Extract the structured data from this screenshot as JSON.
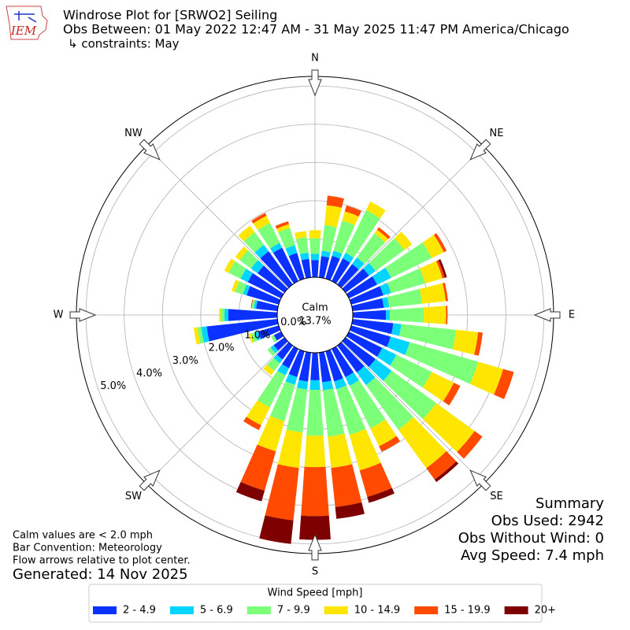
{
  "header": {
    "logo_text": "IEM",
    "title": "Windrose Plot for [SRWO2] Seiling",
    "subtitle": "Obs Between: 01 May 2022 12:47 AM - 31 May 2025 11:47 PM America/Chicago",
    "constraints": "↳ constraints: May"
  },
  "chart_data": {
    "type": "windrose",
    "categories": [
      "N",
      "",
      "",
      "",
      "",
      "",
      "",
      "",
      "",
      "",
      "",
      "",
      "",
      "",
      "",
      "",
      "",
      "",
      "",
      "",
      "",
      "",
      "",
      "",
      "",
      "",
      "",
      "",
      "",
      "",
      "",
      "",
      "",
      "",
      "",
      ""
    ],
    "directions": [
      "N",
      "NE",
      "E",
      "SE",
      "S",
      "SW",
      "W",
      "NW"
    ],
    "calm": {
      "name": "Calm",
      "label": "13.7%"
    },
    "rlim": [
      0,
      5.25
    ],
    "rticks": [
      {
        "value": 0,
        "label": "0.0%"
      },
      {
        "value": 1,
        "label": "1.0%"
      },
      {
        "value": 2,
        "label": "2.0%"
      },
      {
        "value": 3,
        "label": "3.0%"
      },
      {
        "value": 4,
        "label": "4.0%"
      },
      {
        "value": 5,
        "label": "5.0%"
      }
    ],
    "grid": true,
    "legend_title": "Wind Speed [mph]",
    "series": [
      {
        "name": "2 - 4.9",
        "color": "#0a31ff",
        "values": [
          0.45,
          0.56,
          0.62,
          0.66,
          0.66,
          0.76,
          0.82,
          0.87,
          0.82,
          0.87,
          1.07,
          1.07,
          0.97,
          0.97,
          0.87,
          0.82,
          0.82,
          0.78,
          0.72,
          0.76,
          0.7,
          0.56,
          0.45,
          0.35,
          0.21,
          0.56,
          1.86,
          1.28,
          0.56,
          0.87,
          0.97,
          0.87,
          1.07,
          0.97,
          0.7,
          0.49
        ]
      },
      {
        "name": "5 - 6.9",
        "color": "#00d4ff",
        "values": [
          0.16,
          0.14,
          0.14,
          0.16,
          0.21,
          0.21,
          0.41,
          0.21,
          0.14,
          0.1,
          0.21,
          0.52,
          0.41,
          0.52,
          0.41,
          0.25,
          0.21,
          0.21,
          0.25,
          0.21,
          0.21,
          0.21,
          0.12,
          0.1,
          0,
          0.1,
          0.14,
          0.1,
          0.06,
          0.1,
          0.21,
          0.21,
          0.21,
          0.14,
          0.21,
          0.16
        ]
      },
      {
        "name": "7 - 9.9",
        "color": "#7cff79",
        "values": [
          0.41,
          0.68,
          0.82,
          1.24,
          0.78,
          0.93,
          1.18,
          0.93,
          0.87,
          0.89,
          1.44,
          1.86,
          1.03,
          1.44,
          1.44,
          1.24,
          1.24,
          1.22,
          1.2,
          1.13,
          0.99,
          0.93,
          0.25,
          0.1,
          0.08,
          0.1,
          0.1,
          0.1,
          0.06,
          0.21,
          0.35,
          0.37,
          0.41,
          0.58,
          0.47,
          0.41
        ]
      },
      {
        "name": "10 - 14.9",
        "color": "#ffe600",
        "values": [
          0.21,
          0.52,
          0.25,
          0.25,
          0.12,
          0.25,
          0.35,
          0.47,
          0.62,
          0.58,
          0.58,
          0.68,
          0.64,
          1.24,
          1.24,
          0.52,
          0.97,
          0.82,
          0.82,
          0.93,
          0.82,
          0.52,
          0.14,
          0,
          0,
          0.06,
          0.1,
          0.04,
          0,
          0.1,
          0.12,
          0.14,
          0.21,
          0.21,
          0.1,
          0.16
        ]
      },
      {
        "name": "15 - 19.9",
        "color": "#ff4a00",
        "values": [
          0,
          0.25,
          0.16,
          0,
          0.08,
          0,
          0.08,
          0.06,
          0.06,
          0.04,
          0.12,
          0.29,
          0.19,
          0.25,
          0.37,
          0.16,
          0.72,
          1.03,
          1.28,
          1.38,
          1.07,
          0.14,
          0,
          0,
          0,
          0,
          0,
          0,
          0.02,
          0,
          0,
          0,
          0,
          0.08,
          0.08,
          0
        ]
      },
      {
        "name": "20+",
        "color": "#7f0000",
        "values": [
          0,
          0,
          0,
          0,
          0,
          0,
          0,
          0.06,
          0,
          0,
          0,
          0,
          0,
          0,
          0.08,
          0,
          0.16,
          0.31,
          0.62,
          0.62,
          0.29,
          0,
          0,
          0,
          0,
          0,
          0,
          0,
          0,
          0,
          0,
          0,
          0,
          0,
          0,
          0
        ]
      }
    ]
  },
  "summary": {
    "title": "Summary",
    "lines": [
      "Obs Used: 2942",
      "Obs Without Wind: 0",
      "Avg Speed: 7.4 mph"
    ]
  },
  "notes": [
    "Calm values are < 2.0 mph",
    "Bar Convention: Meteorology",
    "Flow arrows relative to plot center."
  ],
  "generated": "Generated: 14 Nov 2025"
}
